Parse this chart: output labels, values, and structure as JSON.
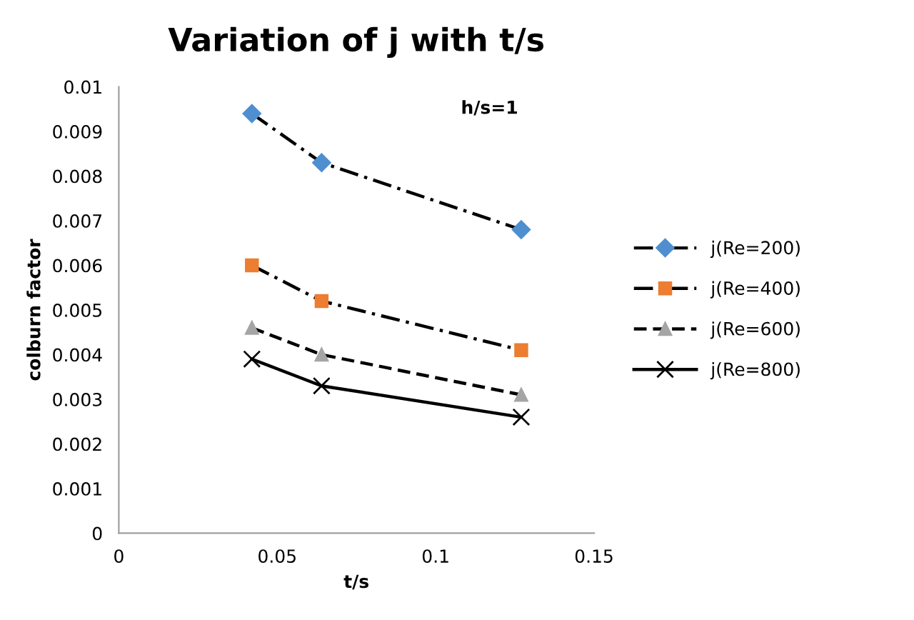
{
  "chart_data": {
    "type": "line",
    "title": "Variation of j with t/s",
    "xlabel": "t/s",
    "ylabel": "colburn factor",
    "annotations": [
      "h/s=1"
    ],
    "x": [
      0.042,
      0.064,
      0.127
    ],
    "series": [
      {
        "name": "j(Re=200)",
        "color": "#4f8fd0",
        "marker": "diamond",
        "line_style": "dashed",
        "values": [
          0.0094,
          0.0083,
          0.0068
        ]
      },
      {
        "name": "j(Re=400)",
        "color": "#ed7d31",
        "marker": "square",
        "line_style": "dashed",
        "values": [
          0.006,
          0.0052,
          0.0041
        ]
      },
      {
        "name": "j(Re=600)",
        "color": "#a5a5a5",
        "marker": "triangle",
        "line_style": "dashed",
        "values": [
          0.0046,
          0.004,
          0.0031
        ]
      },
      {
        "name": "j(Re=800)",
        "color": "#000000",
        "marker": "cross",
        "line_style": "solid",
        "values": [
          0.0039,
          0.0033,
          0.0026
        ]
      }
    ],
    "xlim": [
      0,
      0.15
    ],
    "xticks": [
      0,
      0.05,
      0.1,
      0.15
    ],
    "ylim": [
      0,
      0.01
    ],
    "yticks": [
      0,
      0.001,
      0.002,
      0.003,
      0.004,
      0.005,
      0.006,
      0.007,
      0.008,
      0.009,
      0.01
    ],
    "grid": false,
    "legend": "right"
  }
}
